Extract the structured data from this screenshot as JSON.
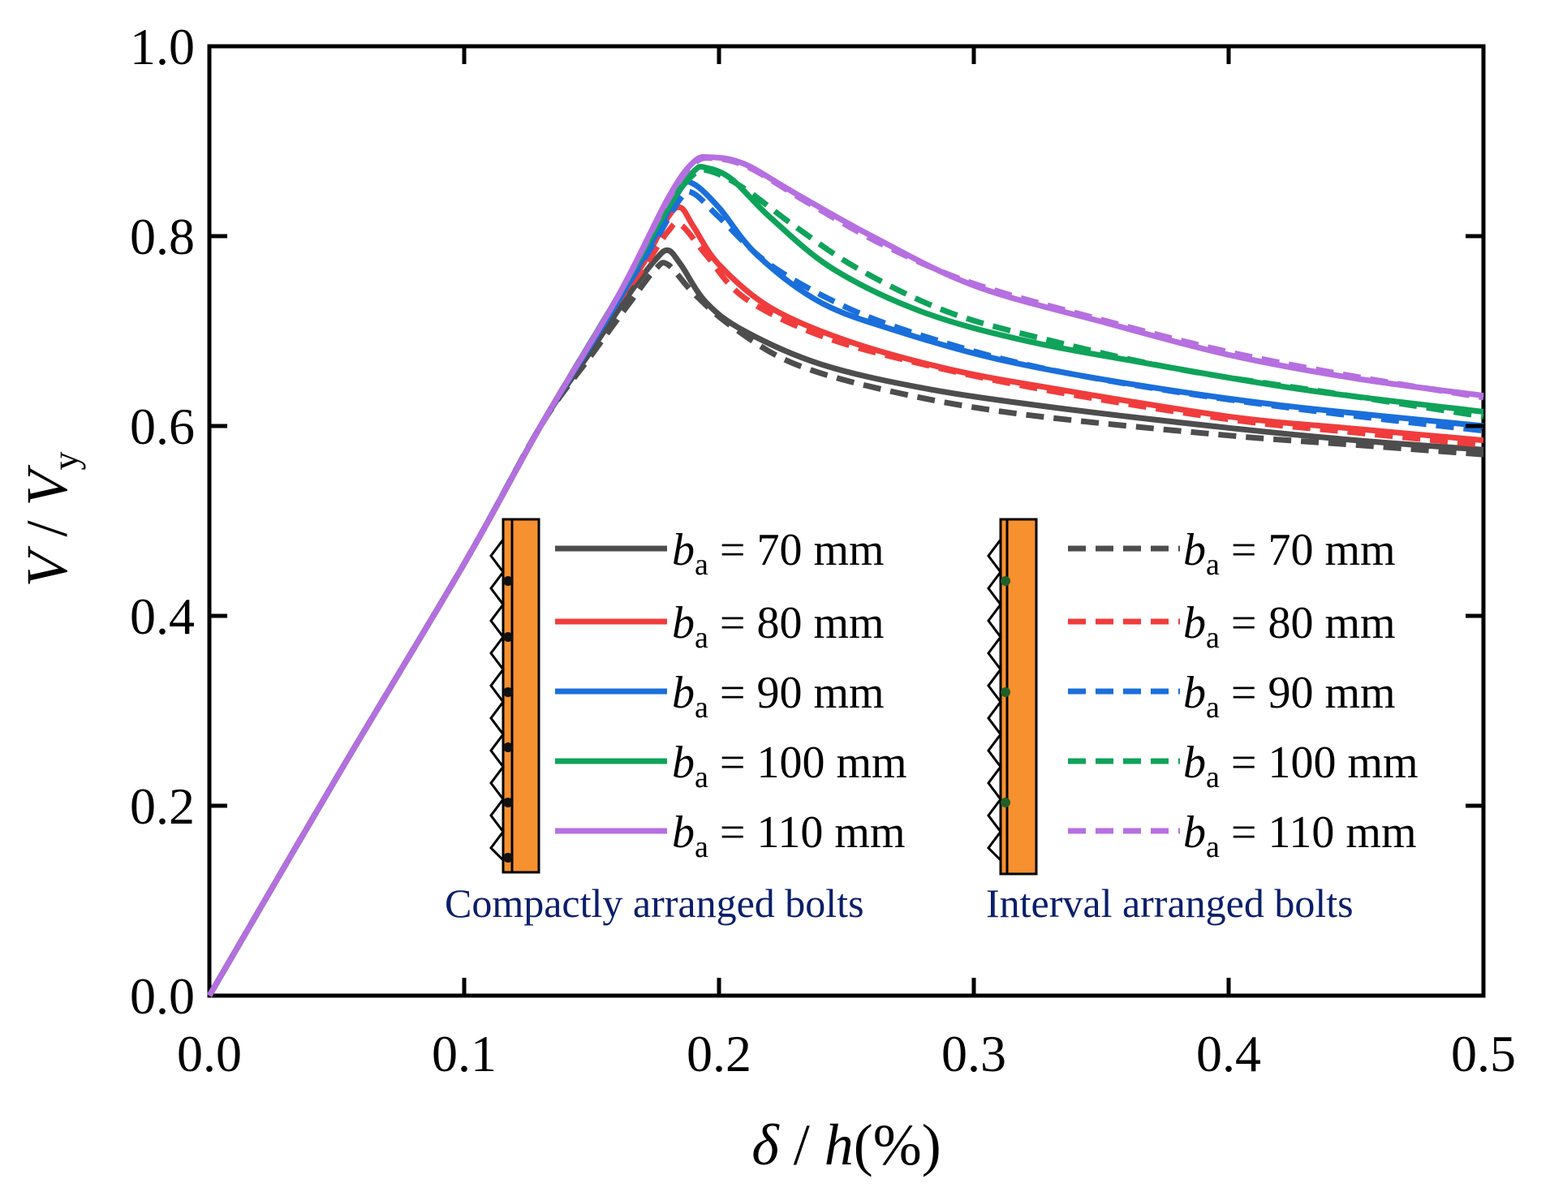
{
  "chart_data": {
    "type": "line",
    "title": "",
    "xlabel": {
      "var1": "δ",
      "sep": " / ",
      "var2": "h",
      "unit": "(%)"
    },
    "ylabel": {
      "var1": "V",
      "sep": " / ",
      "var2": "V",
      "sub": "y"
    },
    "xlim": [
      0,
      0.5
    ],
    "ylim": [
      0,
      1.0
    ],
    "xticks": [
      "0.0",
      "0.1",
      "0.2",
      "0.3",
      "0.4",
      "0.5"
    ],
    "yticks": [
      "0.0",
      "0.2",
      "0.4",
      "0.6",
      "0.8",
      "1.0"
    ],
    "xtick_values": [
      0,
      0.1,
      0.2,
      0.3,
      0.4,
      0.5
    ],
    "ytick_values": [
      0,
      0.2,
      0.4,
      0.6,
      0.8,
      1.0
    ],
    "legend_var": "b",
    "legend_sub": "a",
    "legend_groups": [
      {
        "caption": "Compactly arranged bolts",
        "style": "solid"
      },
      {
        "caption": "Interval arranged bolts",
        "style": "dashed"
      }
    ],
    "series": [
      {
        "name": "ba = 70 mm",
        "label": "= 70 mm",
        "group": 0,
        "color": "#4d4d4d",
        "points": [
          [
            0,
            0
          ],
          [
            0.05,
            0.23
          ],
          [
            0.1,
            0.455
          ],
          [
            0.13,
            0.6
          ],
          [
            0.15,
            0.68
          ],
          [
            0.165,
            0.74
          ],
          [
            0.175,
            0.775
          ],
          [
            0.18,
            0.785
          ],
          [
            0.185,
            0.77
          ],
          [
            0.195,
            0.73
          ],
          [
            0.21,
            0.7
          ],
          [
            0.24,
            0.665
          ],
          [
            0.28,
            0.64
          ],
          [
            0.33,
            0.62
          ],
          [
            0.4,
            0.598
          ],
          [
            0.45,
            0.585
          ],
          [
            0.5,
            0.575
          ]
        ]
      },
      {
        "name": "ba = 80 mm",
        "label": "= 80 mm",
        "group": 0,
        "color": "#f03c3c",
        "points": [
          [
            0,
            0
          ],
          [
            0.05,
            0.23
          ],
          [
            0.1,
            0.455
          ],
          [
            0.13,
            0.6
          ],
          [
            0.155,
            0.71
          ],
          [
            0.17,
            0.77
          ],
          [
            0.18,
            0.82
          ],
          [
            0.185,
            0.83
          ],
          [
            0.19,
            0.81
          ],
          [
            0.2,
            0.77
          ],
          [
            0.22,
            0.725
          ],
          [
            0.25,
            0.69
          ],
          [
            0.29,
            0.66
          ],
          [
            0.33,
            0.64
          ],
          [
            0.4,
            0.61
          ],
          [
            0.45,
            0.597
          ],
          [
            0.5,
            0.585
          ]
        ]
      },
      {
        "name": "ba = 90 mm",
        "label": "= 90 mm",
        "group": 0,
        "color": "#1a6fdb",
        "points": [
          [
            0,
            0
          ],
          [
            0.05,
            0.23
          ],
          [
            0.1,
            0.455
          ],
          [
            0.13,
            0.6
          ],
          [
            0.16,
            0.73
          ],
          [
            0.175,
            0.8
          ],
          [
            0.185,
            0.85
          ],
          [
            0.19,
            0.855
          ],
          [
            0.2,
            0.83
          ],
          [
            0.215,
            0.78
          ],
          [
            0.24,
            0.73
          ],
          [
            0.27,
            0.7
          ],
          [
            0.31,
            0.67
          ],
          [
            0.36,
            0.645
          ],
          [
            0.42,
            0.622
          ],
          [
            0.5,
            0.6
          ]
        ]
      },
      {
        "name": "ba = 100 mm",
        "label": "= 100 mm",
        "group": 0,
        "color": "#0fa35a",
        "points": [
          [
            0,
            0
          ],
          [
            0.05,
            0.23
          ],
          [
            0.1,
            0.455
          ],
          [
            0.13,
            0.6
          ],
          [
            0.16,
            0.735
          ],
          [
            0.18,
            0.83
          ],
          [
            0.19,
            0.868
          ],
          [
            0.195,
            0.872
          ],
          [
            0.205,
            0.86
          ],
          [
            0.22,
            0.82
          ],
          [
            0.245,
            0.765
          ],
          [
            0.28,
            0.72
          ],
          [
            0.32,
            0.69
          ],
          [
            0.37,
            0.665
          ],
          [
            0.43,
            0.638
          ],
          [
            0.5,
            0.615
          ]
        ]
      },
      {
        "name": "ba = 110 mm",
        "label": "= 110 mm",
        "group": 0,
        "color": "#b66fe0",
        "points": [
          [
            0,
            0
          ],
          [
            0.05,
            0.23
          ],
          [
            0.1,
            0.455
          ],
          [
            0.13,
            0.6
          ],
          [
            0.16,
            0.735
          ],
          [
            0.18,
            0.84
          ],
          [
            0.19,
            0.878
          ],
          [
            0.197,
            0.883
          ],
          [
            0.21,
            0.876
          ],
          [
            0.23,
            0.845
          ],
          [
            0.26,
            0.8
          ],
          [
            0.3,
            0.748
          ],
          [
            0.35,
            0.71
          ],
          [
            0.4,
            0.675
          ],
          [
            0.45,
            0.65
          ],
          [
            0.5,
            0.632
          ]
        ]
      },
      {
        "name": "ba = 70 mm (interval)",
        "label": "= 70 mm",
        "group": 1,
        "color": "#4d4d4d",
        "points": [
          [
            0,
            0
          ],
          [
            0.05,
            0.23
          ],
          [
            0.1,
            0.455
          ],
          [
            0.13,
            0.6
          ],
          [
            0.15,
            0.675
          ],
          [
            0.165,
            0.73
          ],
          [
            0.175,
            0.765
          ],
          [
            0.18,
            0.77
          ],
          [
            0.19,
            0.74
          ],
          [
            0.205,
            0.705
          ],
          [
            0.23,
            0.665
          ],
          [
            0.27,
            0.635
          ],
          [
            0.32,
            0.612
          ],
          [
            0.4,
            0.59
          ],
          [
            0.45,
            0.58
          ],
          [
            0.5,
            0.57
          ]
        ]
      },
      {
        "name": "ba = 80 mm (interval)",
        "label": "= 80 mm",
        "group": 1,
        "color": "#f03c3c",
        "points": [
          [
            0,
            0
          ],
          [
            0.05,
            0.23
          ],
          [
            0.1,
            0.455
          ],
          [
            0.13,
            0.6
          ],
          [
            0.155,
            0.71
          ],
          [
            0.17,
            0.765
          ],
          [
            0.18,
            0.805
          ],
          [
            0.185,
            0.812
          ],
          [
            0.195,
            0.78
          ],
          [
            0.21,
            0.735
          ],
          [
            0.24,
            0.695
          ],
          [
            0.28,
            0.665
          ],
          [
            0.33,
            0.637
          ],
          [
            0.4,
            0.607
          ],
          [
            0.45,
            0.593
          ],
          [
            0.5,
            0.58
          ]
        ]
      },
      {
        "name": "ba = 90 mm (interval)",
        "label": "= 90 mm",
        "group": 1,
        "color": "#1a6fdb",
        "points": [
          [
            0,
            0
          ],
          [
            0.05,
            0.23
          ],
          [
            0.1,
            0.455
          ],
          [
            0.13,
            0.6
          ],
          [
            0.16,
            0.73
          ],
          [
            0.175,
            0.795
          ],
          [
            0.185,
            0.84
          ],
          [
            0.19,
            0.845
          ],
          [
            0.2,
            0.82
          ],
          [
            0.22,
            0.77
          ],
          [
            0.25,
            0.725
          ],
          [
            0.28,
            0.695
          ],
          [
            0.32,
            0.665
          ],
          [
            0.37,
            0.64
          ],
          [
            0.43,
            0.617
          ],
          [
            0.5,
            0.595
          ]
        ]
      },
      {
        "name": "ba = 100 mm (interval)",
        "label": "= 100 mm",
        "group": 1,
        "color": "#0fa35a",
        "points": [
          [
            0,
            0
          ],
          [
            0.05,
            0.23
          ],
          [
            0.1,
            0.455
          ],
          [
            0.13,
            0.6
          ],
          [
            0.16,
            0.735
          ],
          [
            0.18,
            0.83
          ],
          [
            0.19,
            0.865
          ],
          [
            0.197,
            0.868
          ],
          [
            0.21,
            0.85
          ],
          [
            0.23,
            0.81
          ],
          [
            0.255,
            0.765
          ],
          [
            0.29,
            0.72
          ],
          [
            0.33,
            0.69
          ],
          [
            0.38,
            0.66
          ],
          [
            0.44,
            0.635
          ],
          [
            0.5,
            0.61
          ]
        ]
      },
      {
        "name": "ba = 110 mm (interval)",
        "label": "= 110 mm",
        "group": 1,
        "color": "#b66fe0",
        "points": [
          [
            0,
            0
          ],
          [
            0.05,
            0.23
          ],
          [
            0.1,
            0.455
          ],
          [
            0.13,
            0.6
          ],
          [
            0.16,
            0.735
          ],
          [
            0.18,
            0.838
          ],
          [
            0.19,
            0.876
          ],
          [
            0.198,
            0.882
          ],
          [
            0.212,
            0.872
          ],
          [
            0.235,
            0.835
          ],
          [
            0.265,
            0.79
          ],
          [
            0.3,
            0.75
          ],
          [
            0.35,
            0.712
          ],
          [
            0.4,
            0.678
          ],
          [
            0.45,
            0.652
          ],
          [
            0.5,
            0.63
          ]
        ]
      }
    ]
  }
}
